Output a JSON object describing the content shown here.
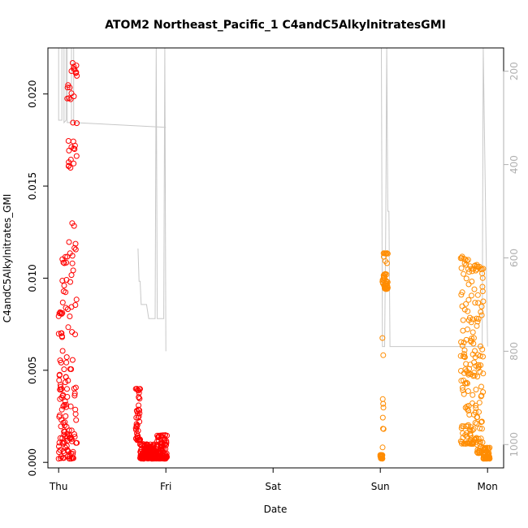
{
  "chart_data": {
    "type": "scatter",
    "title": "ATOM2 Northeast_Pacific_1 C4andC5AlkylnitratesGMI",
    "xlabel": "Date",
    "ylabel": "C4andC5Alkylnitrates_GMI",
    "x_ticks": [
      "Thu",
      "Fri",
      "Sat",
      "Sun",
      "Mon"
    ],
    "x_range_days": [
      -0.1,
      4.15
    ],
    "ylim": [
      -0.0003,
      0.0225
    ],
    "y_ticks": [
      0.0,
      0.005,
      0.01,
      0.015,
      0.02
    ],
    "y_tick_labels": [
      "0.000",
      "0.005",
      "0.010",
      "0.015",
      "0.020"
    ],
    "y2_ticks": [
      200,
      400,
      600,
      800,
      1000
    ],
    "y2_range": [
      150,
      1050
    ],
    "colors": {
      "flight1": "#ff0000",
      "flight2": "#ff8c00",
      "pressure": "#c8c8c8"
    },
    "series": [
      {
        "color": "#ff0000",
        "segments": [
          {
            "x_start": 0.0,
            "x_end": 0.035,
            "y_min": 0.0002,
            "y_max": 0.0082
          },
          {
            "x_start": 0.035,
            "x_end": 0.08,
            "y_min": 0.0002,
            "y_max": 0.0112
          },
          {
            "x_start": 0.08,
            "x_end": 0.12,
            "y_min": 0.0002,
            "y_max": 0.0205
          },
          {
            "x_start": 0.12,
            "x_end": 0.17,
            "y_min": 0.0002,
            "y_max": 0.0218
          },
          {
            "x_start": 0.72,
            "x_end": 0.76,
            "y_min": 0.0012,
            "y_max": 0.004
          },
          {
            "x_start": 0.76,
            "x_end": 0.92,
            "y_min": 0.0002,
            "y_max": 0.001
          },
          {
            "x_start": 0.92,
            "x_end": 1.01,
            "y_min": 0.0002,
            "y_max": 0.0015
          }
        ]
      },
      {
        "color": "#ff8c00",
        "segments": [
          {
            "x_start": 3.0,
            "x_end": 3.02,
            "y_min": 0.0002,
            "y_max": 0.0004
          },
          {
            "x_start": 3.02,
            "x_end": 3.03,
            "y_min": 0.0004,
            "y_max": 0.01
          },
          {
            "x_start": 3.03,
            "x_end": 3.07,
            "y_min": 0.0094,
            "y_max": 0.0114
          },
          {
            "x_start": 3.75,
            "x_end": 3.82,
            "y_min": 0.001,
            "y_max": 0.0112
          },
          {
            "x_start": 3.82,
            "x_end": 3.9,
            "y_min": 0.001,
            "y_max": 0.0107
          },
          {
            "x_start": 3.9,
            "x_end": 3.96,
            "y_min": 0.0005,
            "y_max": 0.0108
          },
          {
            "x_start": 3.96,
            "x_end": 4.02,
            "y_min": 0.0002,
            "y_max": 0.0008
          }
        ]
      }
    ],
    "pressure_polyline": [
      [
        0.0,
        150
      ],
      [
        0.0,
        305
      ],
      [
        0.03,
        305
      ],
      [
        0.03,
        150
      ],
      [
        0.05,
        150
      ],
      [
        0.05,
        310
      ],
      [
        0.07,
        305
      ],
      [
        0.07,
        150
      ],
      [
        0.08,
        150
      ],
      [
        0.08,
        310
      ],
      [
        0.12,
        310
      ],
      [
        0.12,
        150
      ],
      [
        0.14,
        150
      ],
      [
        0.14,
        310
      ],
      [
        1.0,
        320
      ]
    ],
    "pressure_polyline_2": [
      [
        0.74,
        580
      ],
      [
        0.75,
        650
      ],
      [
        0.76,
        650
      ],
      [
        0.77,
        700
      ],
      [
        0.8,
        700
      ],
      [
        0.82,
        700
      ],
      [
        0.84,
        730
      ],
      [
        0.9,
        730
      ],
      [
        0.91,
        150
      ],
      [
        0.92,
        730
      ],
      [
        0.98,
        730
      ],
      [
        0.99,
        150
      ],
      [
        1.0,
        800
      ]
    ],
    "pressure_polyline_3": [
      [
        3.0,
        150
      ],
      [
        3.01,
        150
      ],
      [
        3.02,
        790
      ],
      [
        3.04,
        790
      ],
      [
        3.05,
        550
      ],
      [
        3.06,
        150
      ],
      [
        3.07,
        500
      ],
      [
        3.08,
        500
      ],
      [
        3.09,
        790
      ],
      [
        3.95,
        790
      ],
      [
        3.96,
        150
      ],
      [
        4.0,
        790
      ]
    ]
  }
}
